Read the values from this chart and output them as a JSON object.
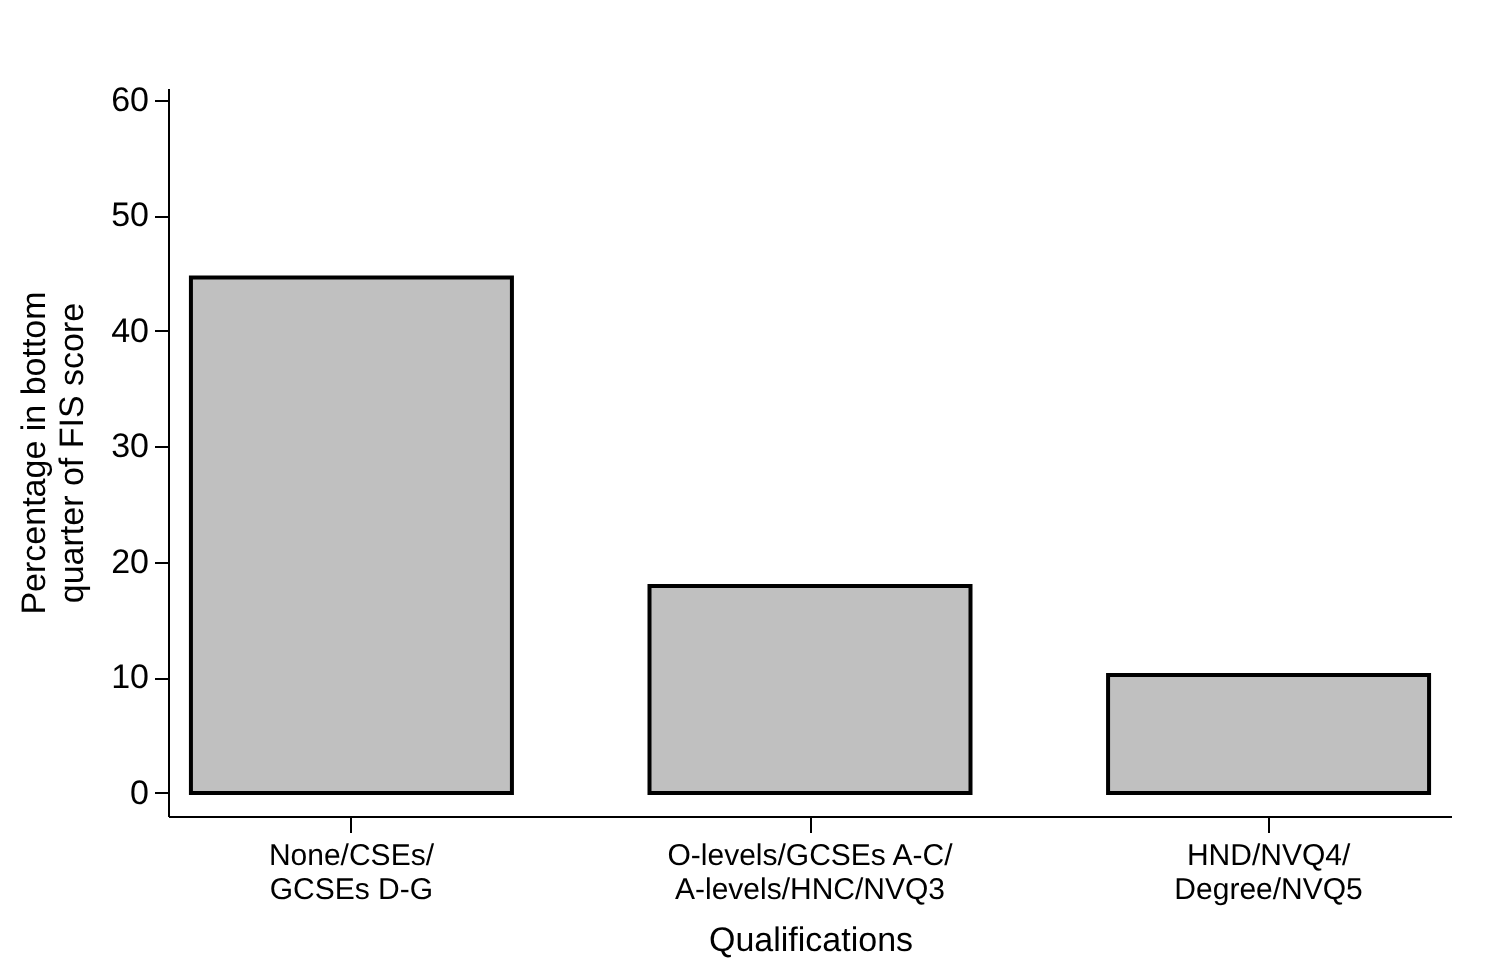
{
  "chart_data": {
    "type": "bar",
    "categories": [
      "None/CSEs/\nGCSEs D-G",
      "O-levels/GCSEs A-C/\nA-levels/HNC/NVQ3",
      "HND/NVQ4/\nDegree/NVQ5"
    ],
    "values": [
      44.6,
      17.9,
      10.2
    ],
    "color": "#c0c0c0",
    "xlabel": "Qualifications",
    "ylabel": "Percentage in bottom\nquarter of FIS score",
    "ylim": [
      -2,
      61
    ],
    "yticks": [
      0,
      10,
      20,
      30,
      40,
      50,
      60
    ],
    "grid": false
  }
}
